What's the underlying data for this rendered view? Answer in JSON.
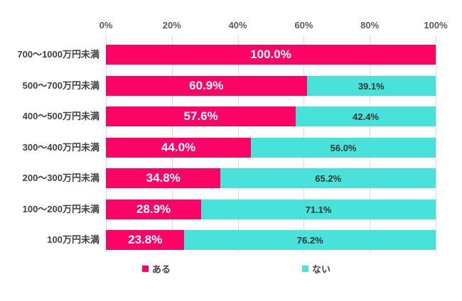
{
  "chart_data": {
    "type": "bar",
    "orientation": "horizontal",
    "stacked": true,
    "title": "",
    "categories": [
      "700〜1000万円未満",
      "500〜700万円未満",
      "400〜500万円未満",
      "300〜400万円未満",
      "200〜300万円未満",
      "100〜200万円未満",
      "100万円未満"
    ],
    "series": [
      {
        "name": "ある",
        "color": "#FB0466",
        "values": [
          100.0,
          60.9,
          57.6,
          44.0,
          34.8,
          28.9,
          23.8
        ]
      },
      {
        "name": "ない",
        "color": "#48E2DA",
        "values": [
          0.0,
          39.1,
          42.4,
          56.0,
          65.2,
          71.1,
          76.2
        ]
      }
    ],
    "value_labels": [
      [
        "100.0%",
        ""
      ],
      [
        "60.9%",
        "39.1%"
      ],
      [
        "57.6%",
        "42.4%"
      ],
      [
        "44.0%",
        "56.0%"
      ],
      [
        "34.8%",
        "65.2%"
      ],
      [
        "28.9%",
        "71.1%"
      ],
      [
        "23.8%",
        "76.2%"
      ]
    ],
    "x_axis": {
      "position": "top",
      "min": 0,
      "max": 100,
      "ticks": [
        "0%",
        "20%",
        "40%",
        "60%",
        "80%",
        "100%"
      ]
    },
    "grid": true,
    "legend_position": "bottom",
    "colors": {
      "grid_line": "#D9D9D9",
      "axis_text": "#595959",
      "category_text": "#404040",
      "label_on_pink": "#FFFFFF",
      "label_on_cyan": "#333333",
      "background": "#FFFFFF"
    }
  }
}
